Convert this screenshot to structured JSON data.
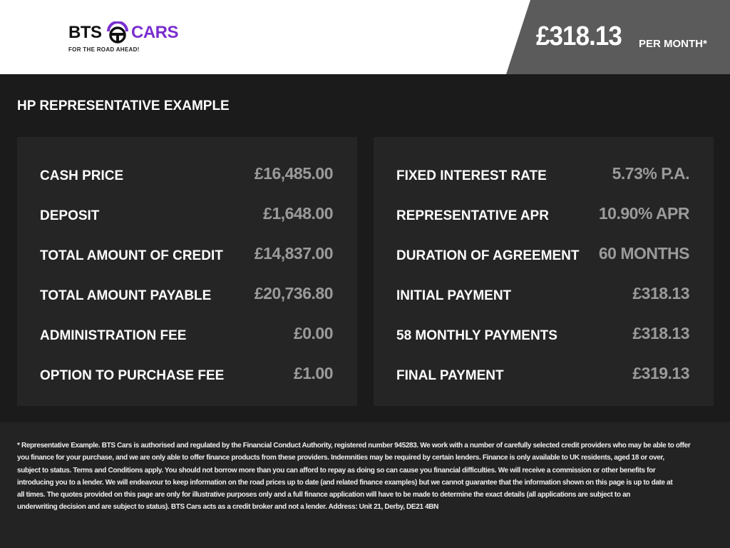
{
  "header": {
    "logo_text_left": "BTS",
    "logo_text_right": "CARS",
    "logo_tagline": "FOR THE ROAD AHEAD!",
    "brand_purple": "#7a2fd0",
    "monthly_price": "£318.13",
    "per_month_label": "PER MONTH*"
  },
  "title": "HP REPRESENTATIVE EXAMPLE",
  "left": [
    {
      "label": "CASH PRICE",
      "value": "£16,485.00"
    },
    {
      "label": "DEPOSIT",
      "value": "£1,648.00"
    },
    {
      "label": "TOTAL AMOUNT OF CREDIT",
      "value": "£14,837.00"
    },
    {
      "label": "TOTAL AMOUNT PAYABLE",
      "value": "£20,736.80"
    },
    {
      "label": "ADMINISTRATION FEE",
      "value": "£0.00"
    },
    {
      "label": "OPTION TO PURCHASE FEE",
      "value": "£1.00"
    }
  ],
  "right": [
    {
      "label": "FIXED INTEREST RATE",
      "value": "5.73% P.A."
    },
    {
      "label": "REPRESENTATIVE APR",
      "value": "10.90% APR"
    },
    {
      "label": "DURATION OF AGREEMENT",
      "value": "60 MONTHS"
    },
    {
      "label": "INITIAL PAYMENT",
      "value": "£318.13"
    },
    {
      "label": "58 MONTHLY PAYMENTS",
      "value": "£318.13"
    },
    {
      "label": "FINAL PAYMENT",
      "value": "£319.13"
    }
  ],
  "disclaimer": [
    "* Representative Example. BTS Cars is authorised and regulated by the Financial Conduct Authority, registered number 945283. We work with a number of carefully selected credit providers who may be able to offer",
    "you finance for your purchase, and we are only able to offer finance products from these providers. Indemnities may be required by certain lenders. Finance is only available to UK residents, aged 18 or over,",
    "subject to status. Terms and Conditions apply. You should not borrow more than you can afford to repay as doing so can cause you financial difficulties. We will receive a commission or other benefits for",
    "introducing you to a lender. We will endeavour to keep information on the road prices up to date (and related finance examples) but we cannot guarantee that the information shown on this page is up to date at",
    "all times. The quotes provided on this page are only for illustrative purposes only and a full finance application will have to be made to determine the exact details (all applications are subject to an",
    "underwriting decision and are subject to status). BTS Cars acts as a credit broker and not a lender. Address: Unit 21, Derby, DE21 4BN"
  ]
}
